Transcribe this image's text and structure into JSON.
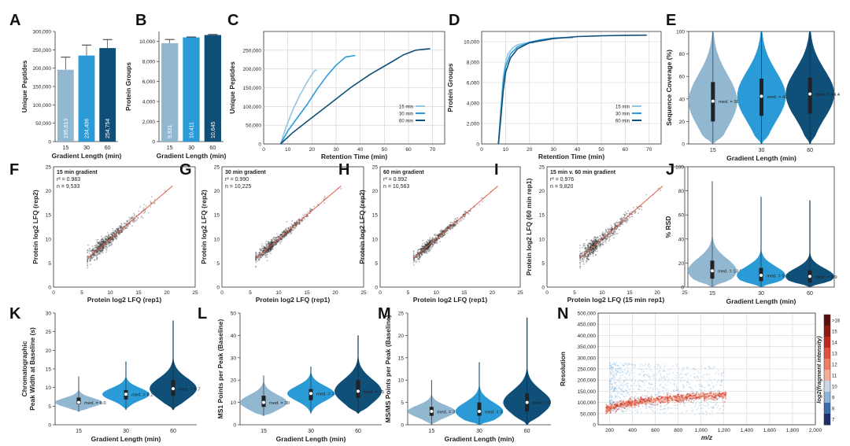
{
  "chart_data": [
    {
      "id": "A",
      "type": "bar",
      "categories": [
        "15",
        "30",
        "60"
      ],
      "values": [
        195613,
        234406,
        254754
      ],
      "value_labels": [
        "195,613",
        "234,406",
        "254,754"
      ],
      "error_tops": [
        230000,
        263000,
        278000
      ],
      "colors": [
        "#92b7d1",
        "#2a9bd6",
        "#0f4f78"
      ],
      "ylim": [
        0,
        300000
      ],
      "yticks": [
        0,
        50000,
        100000,
        150000,
        200000,
        250000,
        300000
      ],
      "ytick_labels": [
        "0",
        "50,000",
        "100,000",
        "150,000",
        "200,000",
        "250,000",
        "300,000"
      ],
      "xlabel": "Gradient Length (min)",
      "ylabel": "Unique Peptides"
    },
    {
      "id": "B",
      "type": "bar",
      "categories": [
        "15",
        "30",
        "60"
      ],
      "values": [
        9831,
        10411,
        10645
      ],
      "value_labels": [
        "9,831",
        "10,411",
        "10,645"
      ],
      "error_tops": [
        10200,
        10450,
        10700
      ],
      "colors": [
        "#92b7d1",
        "#2a9bd6",
        "#0f4f78"
      ],
      "ylim": [
        0,
        11000
      ],
      "yticks": [
        0,
        2000,
        4000,
        6000,
        8000,
        10000
      ],
      "ytick_labels": [
        "0",
        "2,000",
        "4,000",
        "6,000",
        "8,000",
        "10,000"
      ],
      "xlabel": "Gradient Length (min)",
      "ylabel": "Protein Groups"
    },
    {
      "id": "C",
      "type": "line",
      "xlim": [
        0,
        75
      ],
      "ylim": [
        0,
        300000
      ],
      "xticks": [
        0,
        10,
        20,
        30,
        40,
        50,
        60,
        70
      ],
      "yticks": [
        0,
        50000,
        100000,
        150000,
        200000,
        250000
      ],
      "ytick_labels": [
        "0",
        "50,000",
        "100,000",
        "150,000",
        "200,000",
        "250,000"
      ],
      "xlabel": "Retention Time (min)",
      "ylabel": "Unique Peptides",
      "legend": [
        "15 min",
        "30 min",
        "60 min"
      ],
      "series": [
        {
          "name": "15 min",
          "color": "#92c6e4",
          "x": [
            7,
            9,
            12,
            15,
            18,
            21,
            22
          ],
          "y": [
            0,
            40000,
            90000,
            130000,
            165000,
            195000,
            198000
          ]
        },
        {
          "name": "30 min",
          "color": "#2a9bd6",
          "x": [
            7,
            10,
            14,
            18,
            22,
            26,
            30,
            34,
            38
          ],
          "y": [
            0,
            35000,
            70000,
            105000,
            145000,
            180000,
            210000,
            232000,
            236000
          ]
        },
        {
          "name": "60 min",
          "color": "#0f4f78",
          "x": [
            7,
            12,
            20,
            28,
            36,
            44,
            52,
            58,
            63,
            67,
            69
          ],
          "y": [
            0,
            30000,
            70000,
            110000,
            150000,
            185000,
            215000,
            238000,
            250000,
            253000,
            254000
          ]
        }
      ]
    },
    {
      "id": "D",
      "type": "line",
      "xlim": [
        0,
        75
      ],
      "ylim": [
        0,
        11000
      ],
      "xticks": [
        0,
        10,
        20,
        30,
        40,
        50,
        60,
        70
      ],
      "yticks": [
        0,
        2000,
        4000,
        6000,
        8000,
        10000
      ],
      "ytick_labels": [
        "0",
        "2,000",
        "4,000",
        "6,000",
        "8,000",
        "10,000"
      ],
      "xlabel": "Retention Time (min)",
      "ylabel": "Protein Groups",
      "legend": [
        "15 min",
        "30 min",
        "60 min"
      ],
      "series": [
        {
          "name": "15 min",
          "color": "#92c6e4",
          "x": [
            7,
            8,
            9,
            10,
            11,
            13,
            15,
            18,
            21,
            22
          ],
          "y": [
            0,
            3500,
            6500,
            8000,
            8800,
            9400,
            9700,
            9850,
            9900,
            9900
          ]
        },
        {
          "name": "30 min",
          "color": "#2a9bd6",
          "x": [
            7,
            8,
            9,
            10,
            12,
            15,
            20,
            25,
            30,
            35,
            38
          ],
          "y": [
            0,
            3000,
            6000,
            7600,
            8800,
            9500,
            9950,
            10200,
            10350,
            10400,
            10400
          ]
        },
        {
          "name": "60 min",
          "color": "#0f4f78",
          "x": [
            7,
            8,
            9,
            10,
            12,
            15,
            20,
            30,
            40,
            50,
            60,
            69
          ],
          "y": [
            0,
            2500,
            5200,
            7000,
            8400,
            9300,
            9900,
            10300,
            10500,
            10580,
            10620,
            10640
          ]
        }
      ]
    },
    {
      "id": "E",
      "type": "violin",
      "categories": [
        "15",
        "30",
        "60"
      ],
      "medians": [
        38.0,
        42.4,
        44.4
      ],
      "median_labels": [
        "med. = 38.0",
        "med. = 42.4",
        "med. = 44.4"
      ],
      "q1": [
        20,
        25,
        27
      ],
      "q3": [
        55,
        58,
        59
      ],
      "ranges": [
        [
          0,
          100
        ],
        [
          0,
          100
        ],
        [
          0,
          100
        ]
      ],
      "colors": [
        "#92b7d1",
        "#2a9bd6",
        "#0f4f78"
      ],
      "ylim": [
        0,
        100
      ],
      "yticks": [
        0,
        20,
        40,
        60,
        80,
        100
      ],
      "xlabel": "Gradient Length (min)",
      "ylabel": "Sequence Coverage (%)"
    },
    {
      "id": "F",
      "type": "scatter",
      "annotations": [
        "15 min gradient",
        "r² = 0.983",
        "n = 9,533"
      ],
      "xlim": [
        0,
        25
      ],
      "ylim": [
        0,
        25
      ],
      "ticks": [
        0,
        5,
        10,
        15,
        20,
        25
      ],
      "xlabel": "Protein log2 LFQ (rep1)",
      "ylabel": "Protein log2 LFQ (rep2)"
    },
    {
      "id": "G",
      "type": "scatter",
      "annotations": [
        "30 min gradient",
        "r² = 0.990",
        "n = 10,225"
      ],
      "xlim": [
        0,
        25
      ],
      "ylim": [
        0,
        25
      ],
      "ticks": [
        0,
        5,
        10,
        15,
        20,
        25
      ],
      "xlabel": "Protein log2 LFQ (rep1)",
      "ylabel": "Protein log2 LFQ (rep2)"
    },
    {
      "id": "H",
      "type": "scatter",
      "annotations": [
        "60 min gradient",
        "r² = 0.992",
        "n = 10,563"
      ],
      "xlim": [
        0,
        25
      ],
      "ylim": [
        0,
        25
      ],
      "ticks": [
        0,
        5,
        10,
        15,
        20,
        25
      ],
      "xlabel": "Protein log2 LFQ (rep1)",
      "ylabel": "Protein log2 LFQ (rep2)"
    },
    {
      "id": "I",
      "type": "scatter",
      "annotations": [
        "15 min v. 60 min gradient",
        "r² = 0.976",
        "n = 9,820"
      ],
      "xlim": [
        0,
        25
      ],
      "ylim": [
        0,
        25
      ],
      "ticks": [
        0,
        5,
        10,
        15,
        20,
        25
      ],
      "xlabel": "Protein log2 LFQ (15 min rep1)",
      "ylabel": "Protein log2 LFQ (60 min rep1)"
    },
    {
      "id": "J",
      "type": "violin",
      "categories": [
        "15",
        "30",
        "60"
      ],
      "medians": [
        13.6,
        9.8,
        8.9
      ],
      "median_labels": [
        "med. = 13.6",
        "med. = 9.8",
        "med. = 8.9"
      ],
      "q1": [
        7,
        5,
        4
      ],
      "q3": [
        22,
        16,
        14
      ],
      "ranges": [
        [
          0,
          88
        ],
        [
          0,
          75
        ],
        [
          0,
          72
        ]
      ],
      "colors": [
        "#92b7d1",
        "#2a9bd6",
        "#0f4f78"
      ],
      "ylim": [
        0,
        100
      ],
      "yticks": [
        0,
        20,
        40,
        60,
        80,
        100
      ],
      "xlabel": "Gradient Length (min)",
      "ylabel": "% RSD"
    },
    {
      "id": "K",
      "type": "violin",
      "categories": [
        "15",
        "30",
        "60"
      ],
      "medians": [
        6.0,
        8.2,
        9.7
      ],
      "median_labels": [
        "med. = 6.0",
        "med. = 8.2",
        "med. = 9.7"
      ],
      "q1": [
        5.5,
        6.8,
        7.8
      ],
      "q3": [
        7.3,
        9.3,
        12.0
      ],
      "ranges": [
        [
          3.5,
          13
        ],
        [
          4,
          17
        ],
        [
          4,
          28
        ]
      ],
      "colors": [
        "#92b7d1",
        "#2a9bd6",
        "#0f4f78"
      ],
      "ylim": [
        0,
        30
      ],
      "yticks": [
        0,
        5,
        10,
        15,
        20,
        25,
        30
      ],
      "xlabel": "Gradient Length (min)",
      "ylabel": "Chromatographic Peak Width at Baseline (s)"
    },
    {
      "id": "L",
      "type": "violin",
      "categories": [
        "15",
        "30",
        "60"
      ],
      "medians": [
        10,
        14,
        15
      ],
      "median_labels": [
        "med. = 10",
        "med. = 14",
        "med. = 15"
      ],
      "q1": [
        8,
        11,
        12
      ],
      "q3": [
        13,
        16,
        20
      ],
      "ranges": [
        [
          4,
          22
        ],
        [
          5,
          26
        ],
        [
          5,
          40
        ]
      ],
      "colors": [
        "#92b7d1",
        "#2a9bd6",
        "#0f4f78"
      ],
      "ylim": [
        0,
        50
      ],
      "yticks": [
        0,
        10,
        20,
        30,
        40,
        50
      ],
      "xlabel": "Gradient Length (min)",
      "ylabel": "MS1 Points per Peak (Baseline)"
    },
    {
      "id": "M",
      "type": "violin",
      "categories": [
        "15",
        "30",
        "60"
      ],
      "medians": [
        3,
        3,
        5
      ],
      "median_labels": [
        "med. = 3",
        "med. = 3",
        "med. = 5"
      ],
      "q1": [
        2,
        2,
        3
      ],
      "q3": [
        4,
        5,
        7
      ],
      "ranges": [
        [
          0,
          10
        ],
        [
          0,
          14
        ],
        [
          0,
          24
        ]
      ],
      "colors": [
        "#92b7d1",
        "#2a9bd6",
        "#0f4f78"
      ],
      "ylim": [
        0,
        25
      ],
      "yticks": [
        0,
        5,
        10,
        15,
        20,
        25
      ],
      "xlabel": "Gradient Length (min)",
      "ylabel": "MS/MS Points per Peak (Baseline)"
    },
    {
      "id": "N",
      "type": "heatmap",
      "xlim": [
        100,
        2000
      ],
      "ylim": [
        0,
        500000
      ],
      "xticks": [
        200,
        400,
        600,
        800,
        1000,
        1200,
        1400,
        1600,
        1800,
        2000
      ],
      "xtick_labels": [
        "200",
        "400",
        "600",
        "800",
        "1,000",
        "1,200",
        "1,400",
        "1,600",
        "1,800",
        "2,000"
      ],
      "yticks": [
        0,
        50000,
        100000,
        150000,
        200000,
        250000,
        300000,
        350000,
        400000,
        450000,
        500000
      ],
      "ytick_labels": [
        "0",
        "50,000",
        "100,000",
        "150,000",
        "200,000",
        "250,000",
        "300,000",
        "350,000",
        "400,000",
        "450,000",
        "500,000"
      ],
      "xlabel": "m/z",
      "ylabel": "Resolution",
      "colorbar": {
        "label": "log2(fragment intensity)",
        "ticks": [
          ">16",
          "15",
          "14",
          "13",
          "12",
          "11",
          "10",
          "9",
          "8",
          "7"
        ]
      }
    }
  ],
  "panel_letters": [
    "A",
    "B",
    "C",
    "D",
    "E",
    "F",
    "G",
    "H",
    "I",
    "J",
    "K",
    "L",
    "M",
    "N"
  ]
}
